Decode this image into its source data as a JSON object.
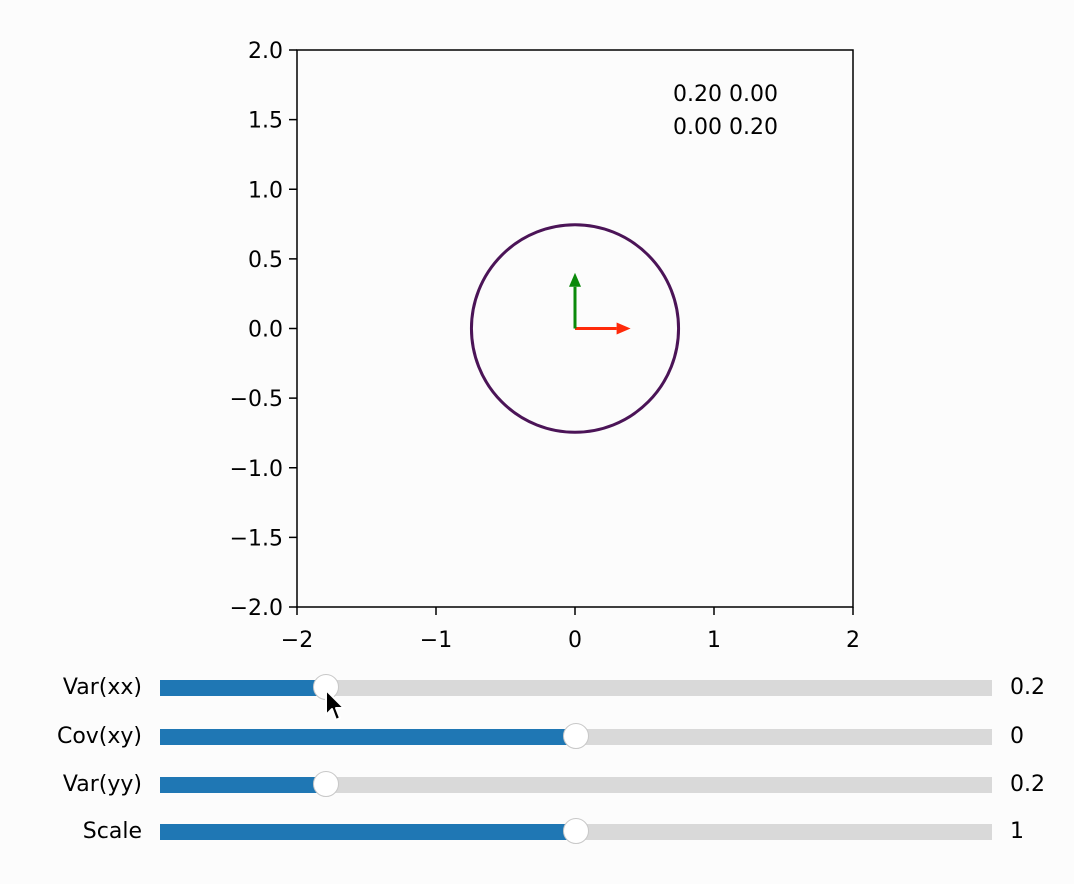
{
  "matrix_display": {
    "row1": "0.20 0.00",
    "row2": "0.00 0.20"
  },
  "chart_data": {
    "type": "scatter",
    "title": "",
    "xlabel": "",
    "ylabel": "",
    "xlim": [
      -2,
      2
    ],
    "ylim": [
      -2,
      2
    ],
    "xticks": [
      -2,
      -1,
      0,
      1,
      2
    ],
    "xtick_labels": [
      "−2",
      "−1",
      "0",
      "1",
      "2"
    ],
    "yticks": [
      2.0,
      1.5,
      1.0,
      0.5,
      0.0,
      -0.5,
      -1.0,
      -1.5,
      -2.0
    ],
    "ytick_labels": [
      "2.0",
      "1.5",
      "1.0",
      "0.5",
      "0.0",
      "−0.5",
      "−1.0",
      "−1.5",
      "−2.0"
    ],
    "grid": false,
    "ellipse": {
      "center": [
        0,
        0
      ],
      "rx": 0.745,
      "ry": 0.745,
      "color": "#4b1457"
    },
    "arrows": [
      {
        "name": "x-axis-arrow",
        "from": [
          0,
          0
        ],
        "to": [
          0.4,
          0
        ],
        "color": "#ff2a0a"
      },
      {
        "name": "y-axis-arrow",
        "from": [
          0,
          0
        ],
        "to": [
          0,
          0.4
        ],
        "color": "#0a8a0a"
      }
    ]
  },
  "sliders": [
    {
      "label": "Var(xx)",
      "value_text": "0.2",
      "fraction": 0.2
    },
    {
      "label": "Cov(xy)",
      "value_text": "0",
      "fraction": 0.5
    },
    {
      "label": "Var(yy)",
      "value_text": "0.2",
      "fraction": 0.2
    },
    {
      "label": "Scale",
      "value_text": "1",
      "fraction": 0.5
    }
  ],
  "colors": {
    "slider_fill": "#1f77b4",
    "slider_track": "#d9d9d9",
    "ellipse": "#4b1457"
  }
}
